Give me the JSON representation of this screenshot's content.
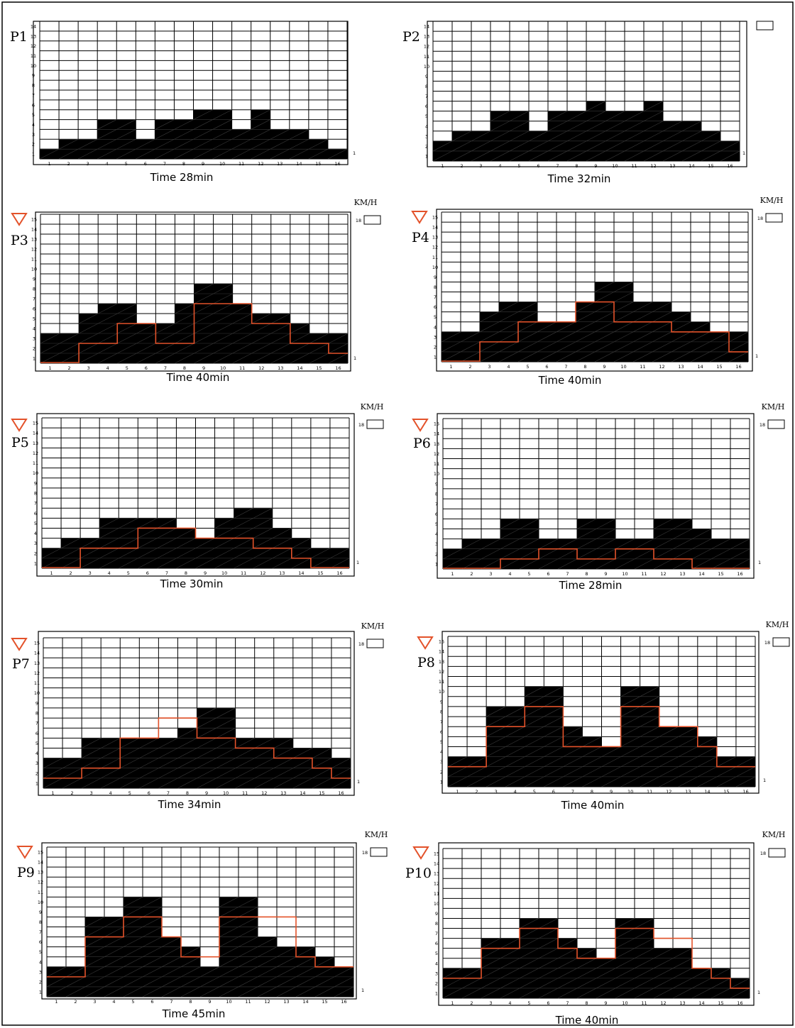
{
  "chart_data": [
    {
      "type": "bar",
      "id": "P1",
      "label": "P1",
      "caption": "Time 28min",
      "categories": [
        "1",
        "2",
        "3",
        "4",
        "5",
        "6",
        "7",
        "8",
        "9",
        "10",
        "11",
        "12",
        "13",
        "14",
        "15",
        "16"
      ],
      "y_ticks": [
        "1",
        "2",
        "3",
        "4",
        "5",
        "6",
        "7",
        "8",
        "9",
        "10",
        "11",
        "12",
        "13",
        "14"
      ],
      "ylim": [
        0,
        14
      ],
      "series": [
        {
          "kind": "bar",
          "values": [
            1,
            2,
            2,
            4,
            4,
            2,
            4,
            4,
            5,
            5,
            3,
            5,
            3,
            3,
            2,
            1
          ]
        }
      ],
      "side_label": "1",
      "unit_label": "",
      "speed_value": ""
    },
    {
      "type": "bar",
      "id": "P2",
      "label": "P2",
      "caption": "Time 32min",
      "categories": [
        "1",
        "2",
        "3",
        "4",
        "5",
        "6",
        "7",
        "8",
        "9",
        "10",
        "11",
        "12",
        "13",
        "14",
        "15",
        "16"
      ],
      "y_ticks": [
        "1",
        "2",
        "3",
        "4",
        "5",
        "6",
        "7",
        "8",
        "9",
        "10",
        "11",
        "12",
        "13",
        "14"
      ],
      "ylim": [
        0,
        14
      ],
      "series": [
        {
          "kind": "bar",
          "values": [
            2,
            3,
            3,
            5,
            5,
            3,
            5,
            5,
            6,
            5,
            5,
            6,
            4,
            4,
            3,
            2
          ]
        }
      ],
      "side_label": "1",
      "unit_label": "",
      "speed_value": ""
    },
    {
      "type": "bar",
      "id": "P3",
      "label": "P3",
      "caption": "Time 40min",
      "categories": [
        "1",
        "2",
        "3",
        "4",
        "5",
        "6",
        "7",
        "8",
        "9",
        "10",
        "11",
        "12",
        "13",
        "14",
        "15",
        "16"
      ],
      "y_ticks": [
        "1",
        "2",
        "3",
        "4",
        "5",
        "6",
        "7",
        "8",
        "9",
        "10",
        "11",
        "12",
        "13",
        "14",
        "15"
      ],
      "ylim": [
        0,
        15
      ],
      "series": [
        {
          "kind": "bar",
          "values": [
            3,
            3,
            5,
            6,
            6,
            4,
            4,
            6,
            8,
            8,
            6,
            5,
            5,
            4,
            3,
            3
          ]
        },
        {
          "kind": "line",
          "values": [
            0,
            0,
            2,
            2,
            4,
            4,
            2,
            2,
            6,
            6,
            6,
            4,
            4,
            2,
            2,
            1
          ]
        }
      ],
      "side_label": "1",
      "unit_label": "KM/H",
      "speed_value": "18"
    },
    {
      "type": "bar",
      "id": "P4",
      "label": "P4",
      "caption": "Time 40min",
      "categories": [
        "1",
        "2",
        "3",
        "4",
        "5",
        "6",
        "7",
        "8",
        "9",
        "10",
        "11",
        "12",
        "13",
        "14",
        "15",
        "16"
      ],
      "y_ticks": [
        "1",
        "2",
        "3",
        "4",
        "5",
        "6",
        "7",
        "8",
        "9",
        "10",
        "11",
        "12",
        "13",
        "14",
        "15"
      ],
      "ylim": [
        0,
        15
      ],
      "series": [
        {
          "kind": "bar",
          "values": [
            3,
            3,
            5,
            6,
            6,
            4,
            4,
            6,
            8,
            8,
            6,
            6,
            5,
            4,
            3,
            3
          ]
        },
        {
          "kind": "line",
          "values": [
            0,
            0,
            2,
            2,
            4,
            4,
            4,
            6,
            6,
            4,
            4,
            4,
            3,
            3,
            3,
            1
          ]
        }
      ],
      "side_label": "1",
      "unit_label": "KM/H",
      "speed_value": "18"
    },
    {
      "type": "bar",
      "id": "P5",
      "label": "P5",
      "caption": "Time 30min",
      "categories": [
        "1",
        "2",
        "3",
        "4",
        "5",
        "6",
        "7",
        "8",
        "9",
        "10",
        "11",
        "12",
        "13",
        "14",
        "15",
        "16"
      ],
      "y_ticks": [
        "1",
        "2",
        "3",
        "4",
        "5",
        "6",
        "7",
        "8",
        "9",
        "10",
        "11",
        "12",
        "13",
        "14",
        "15"
      ],
      "ylim": [
        0,
        15
      ],
      "series": [
        {
          "kind": "bar",
          "values": [
            2,
            3,
            3,
            5,
            5,
            5,
            5,
            4,
            3,
            5,
            6,
            6,
            4,
            3,
            2,
            2
          ]
        },
        {
          "kind": "line",
          "values": [
            0,
            0,
            2,
            2,
            2,
            4,
            4,
            4,
            3,
            3,
            3,
            2,
            2,
            1,
            0,
            0
          ]
        }
      ],
      "side_label": "1",
      "unit_label": "KM/H",
      "speed_value": "18"
    },
    {
      "type": "bar",
      "id": "P6",
      "label": "P6",
      "caption": "Time 28min",
      "categories": [
        "1",
        "2",
        "3",
        "4",
        "5",
        "6",
        "7",
        "8",
        "9",
        "10",
        "11",
        "12",
        "13",
        "14",
        "15",
        "16"
      ],
      "y_ticks": [
        "1",
        "2",
        "3",
        "4",
        "5",
        "6",
        "7",
        "8",
        "9",
        "10",
        "11",
        "12",
        "13",
        "14",
        "15"
      ],
      "ylim": [
        0,
        15
      ],
      "series": [
        {
          "kind": "bar",
          "values": [
            2,
            3,
            3,
            5,
            5,
            3,
            3,
            5,
            5,
            3,
            3,
            5,
            5,
            4,
            3,
            3
          ]
        },
        {
          "kind": "line",
          "values": [
            0,
            0,
            0,
            1,
            1,
            2,
            2,
            1,
            1,
            2,
            2,
            1,
            1,
            0,
            0,
            0
          ]
        }
      ],
      "side_label": "1",
      "unit_label": "KM/H",
      "speed_value": "18"
    },
    {
      "type": "bar",
      "id": "P7",
      "label": "P7",
      "caption": "Time 34min",
      "categories": [
        "1",
        "2",
        "3",
        "4",
        "5",
        "6",
        "7",
        "8",
        "9",
        "10",
        "11",
        "12",
        "13",
        "14",
        "15",
        "16"
      ],
      "y_ticks": [
        "1",
        "2",
        "3",
        "4",
        "5",
        "6",
        "7",
        "8",
        "9",
        "10",
        "11",
        "12",
        "13",
        "14",
        "15"
      ],
      "ylim": [
        0,
        15
      ],
      "series": [
        {
          "kind": "bar",
          "values": [
            3,
            3,
            5,
            5,
            5,
            5,
            5,
            6,
            8,
            8,
            5,
            5,
            5,
            4,
            4,
            3
          ]
        },
        {
          "kind": "line",
          "values": [
            1,
            1,
            2,
            2,
            5,
            5,
            7,
            7,
            5,
            5,
            4,
            4,
            3,
            3,
            2,
            1
          ]
        }
      ],
      "side_label": "1",
      "unit_label": "KM/H",
      "speed_value": "18"
    },
    {
      "type": "bar",
      "id": "P8",
      "label": "P8",
      "caption": "Time 40min",
      "categories": [
        "1",
        "2",
        "3",
        "4",
        "5",
        "6",
        "7",
        "8",
        "9",
        "10",
        "11",
        "12",
        "13",
        "14",
        "15",
        "16"
      ],
      "y_ticks": [
        "1",
        "2",
        "3",
        "4",
        "5",
        "6",
        "7",
        "8",
        "9",
        "10",
        "11",
        "12",
        "13",
        "14",
        "15"
      ],
      "ylim": [
        0,
        15
      ],
      "series": [
        {
          "kind": "bar",
          "values": [
            3,
            3,
            8,
            8,
            10,
            10,
            6,
            5,
            4,
            10,
            10,
            6,
            6,
            5,
            3,
            3
          ]
        },
        {
          "kind": "line",
          "values": [
            2,
            2,
            6,
            6,
            8,
            8,
            4,
            4,
            4,
            8,
            8,
            6,
            6,
            4,
            2,
            2
          ]
        }
      ],
      "side_label": "1",
      "unit_label": "KM/H",
      "speed_value": "18"
    },
    {
      "type": "bar",
      "id": "P9",
      "label": "P9",
      "caption": "Time 45min",
      "categories": [
        "1",
        "2",
        "3",
        "4",
        "5",
        "6",
        "7",
        "8",
        "9",
        "10",
        "11",
        "12",
        "13",
        "14",
        "15",
        "16"
      ],
      "y_ticks": [
        "1",
        "2",
        "3",
        "4",
        "5",
        "6",
        "7",
        "8",
        "9",
        "10",
        "11",
        "12",
        "13",
        "14",
        "15"
      ],
      "ylim": [
        0,
        15
      ],
      "series": [
        {
          "kind": "bar",
          "values": [
            3,
            3,
            8,
            8,
            10,
            10,
            6,
            5,
            3,
            10,
            10,
            6,
            5,
            5,
            4,
            3
          ]
        },
        {
          "kind": "line",
          "values": [
            2,
            2,
            6,
            6,
            8,
            8,
            6,
            4,
            4,
            8,
            8,
            8,
            8,
            4,
            3,
            3
          ]
        }
      ],
      "side_label": "1",
      "unit_label": "KM/H",
      "speed_value": "18"
    },
    {
      "type": "bar",
      "id": "P10",
      "label": "P10",
      "caption": "Time 40min",
      "categories": [
        "1",
        "2",
        "3",
        "4",
        "5",
        "6",
        "7",
        "8",
        "9",
        "10",
        "11",
        "12",
        "13",
        "14",
        "15",
        "16"
      ],
      "y_ticks": [
        "1",
        "2",
        "3",
        "4",
        "5",
        "6",
        "7",
        "8",
        "9",
        "10",
        "11",
        "12",
        "13",
        "14",
        "15"
      ],
      "ylim": [
        0,
        15
      ],
      "series": [
        {
          "kind": "bar",
          "values": [
            3,
            3,
            6,
            6,
            8,
            8,
            6,
            5,
            4,
            8,
            8,
            5,
            5,
            3,
            3,
            2
          ]
        },
        {
          "kind": "line",
          "values": [
            2,
            2,
            5,
            5,
            7,
            7,
            5,
            4,
            4,
            7,
            7,
            6,
            6,
            3,
            2,
            1
          ]
        }
      ],
      "side_label": "1",
      "unit_label": "KM/H",
      "speed_value": "18"
    }
  ],
  "colors": {
    "bar": "#000000",
    "line": "#e3522a",
    "grid": "#222222",
    "triangle": "#e3522a"
  },
  "icons": {
    "triangle": "down-triangle-icon"
  }
}
